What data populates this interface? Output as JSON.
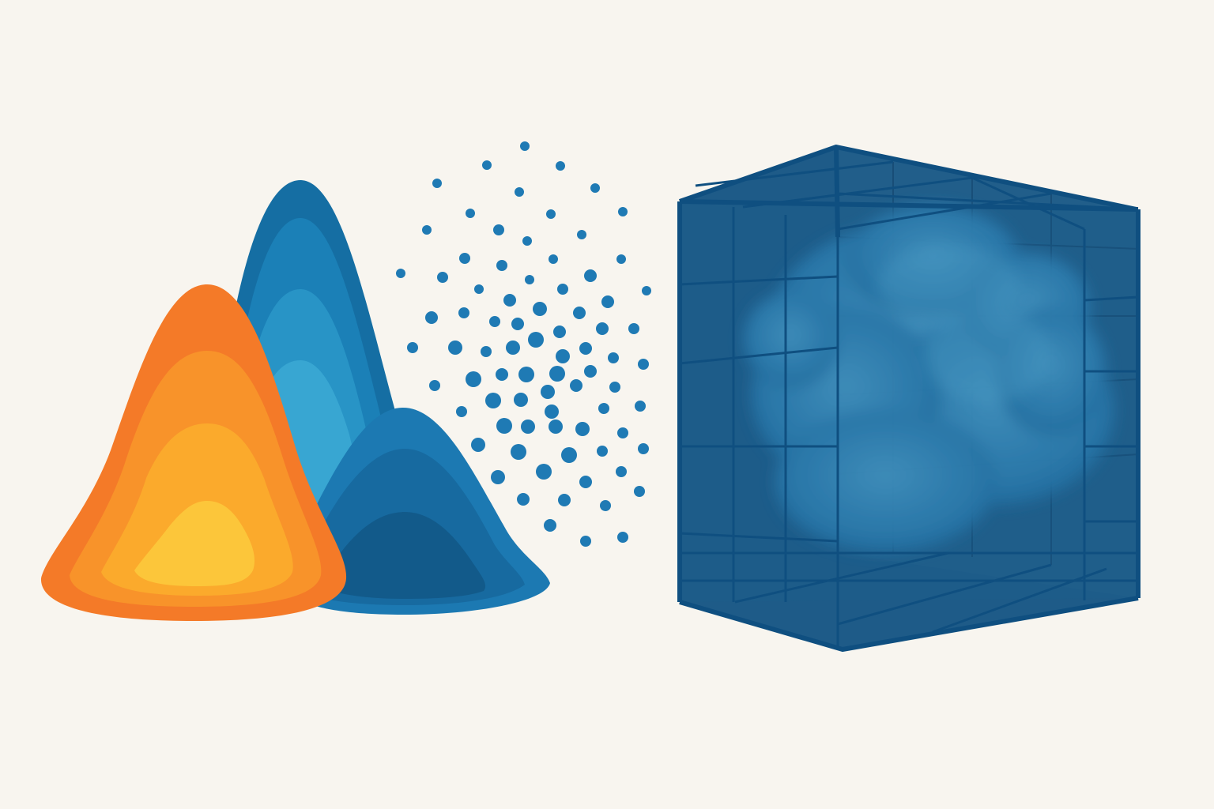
{
  "colors": {
    "background": "#f8f5ef",
    "orange_layers": [
      "#f47a28",
      "#f8932a",
      "#fbaa2c",
      "#fcc63a"
    ],
    "blue_layers": [
      "#156ea3",
      "#1b80b7",
      "#2894c6",
      "#38a6d2"
    ],
    "small_peak_layers": [
      "#1c79b2",
      "#176aa0",
      "#125a8a"
    ],
    "dot": "#1f7ab4",
    "cube_frame": "#0f4f80",
    "cube_fill": "#1d5f8e",
    "cloud": "#3a8fbf"
  },
  "icons": {
    "left": "layered-distribution-peaks-icon",
    "middle": "particle-scatter-icon",
    "right": "volume-grid-cube-with-cloud-icon"
  }
}
